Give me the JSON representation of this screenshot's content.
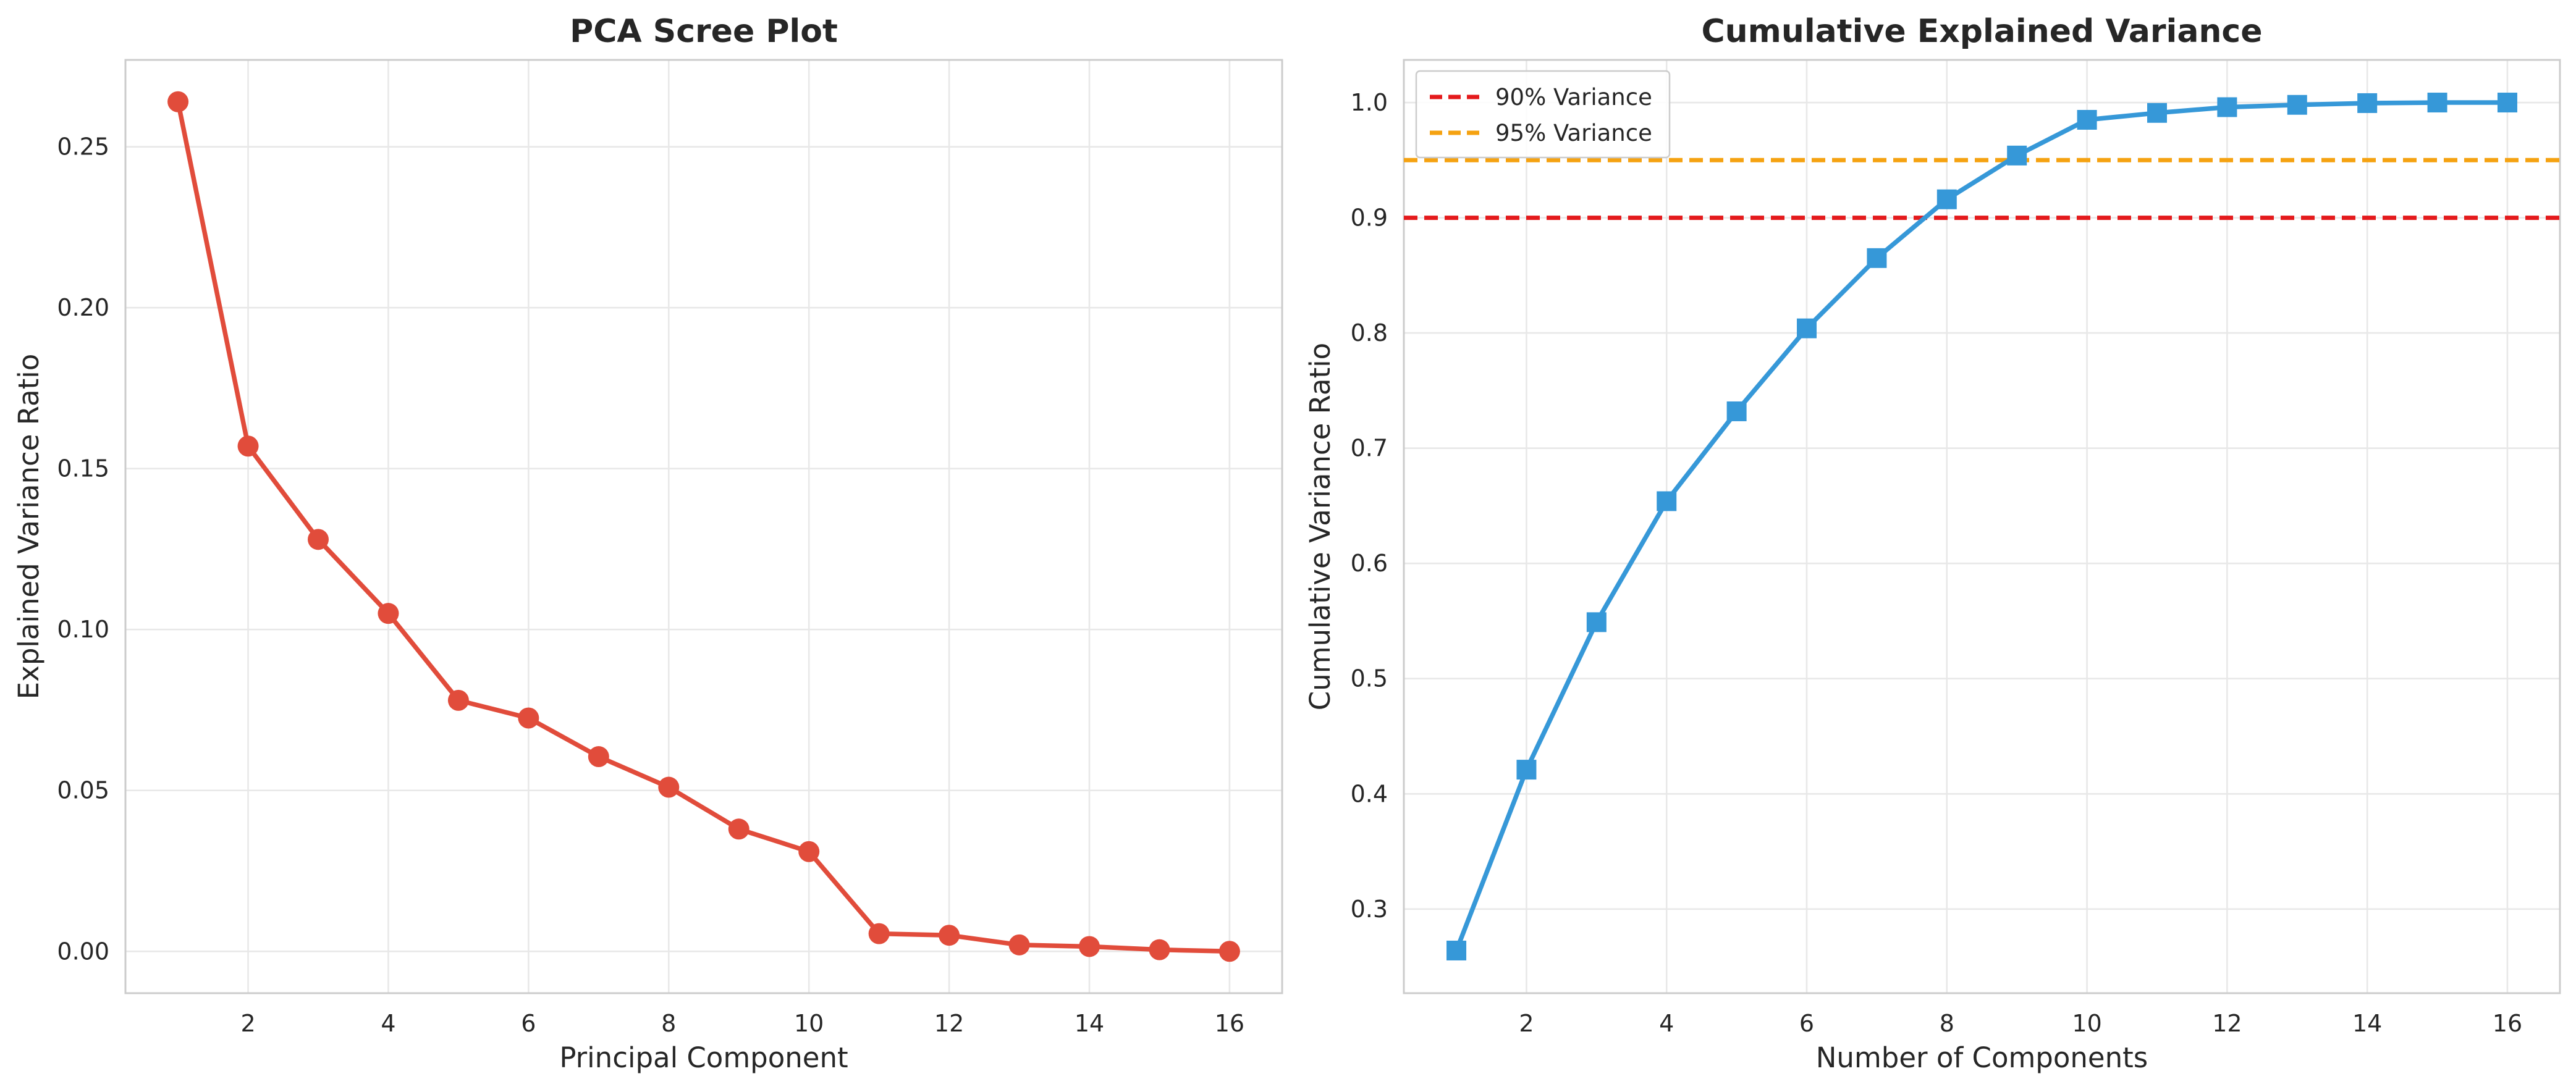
{
  "chart_data": [
    {
      "type": "line",
      "title": "PCA Scree Plot",
      "xlabel": "Principal Component",
      "ylabel": "Explained Variance Ratio",
      "xlim": [
        0.25,
        16.75
      ],
      "ylim": [
        -0.013,
        0.277
      ],
      "xticks": [
        2,
        4,
        6,
        8,
        10,
        12,
        14,
        16
      ],
      "yticks": [
        0.0,
        0.05,
        0.1,
        0.15,
        0.2,
        0.25
      ],
      "ytick_labels": [
        "0.00",
        "0.05",
        "0.10",
        "0.15",
        "0.20",
        "0.25"
      ],
      "grid": true,
      "series": [
        {
          "marker": "circle",
          "color": "#e14c3b",
          "x": [
            1,
            2,
            3,
            4,
            5,
            6,
            7,
            8,
            9,
            10,
            11,
            12,
            13,
            14,
            15,
            16
          ],
          "y": [
            0.264,
            0.157,
            0.128,
            0.105,
            0.078,
            0.0725,
            0.0605,
            0.051,
            0.038,
            0.031,
            0.0055,
            0.005,
            0.002,
            0.0015,
            0.0005,
            0.0
          ]
        }
      ]
    },
    {
      "type": "line",
      "title": "Cumulative Explained Variance",
      "xlabel": "Number of Components",
      "ylabel": "Cumulative Variance Ratio",
      "xlim": [
        0.25,
        16.75
      ],
      "ylim": [
        0.227,
        1.037
      ],
      "xticks": [
        2,
        4,
        6,
        8,
        10,
        12,
        14,
        16
      ],
      "yticks": [
        0.3,
        0.4,
        0.5,
        0.6,
        0.7,
        0.8,
        0.9,
        1.0
      ],
      "ytick_labels": [
        "0.3",
        "0.4",
        "0.5",
        "0.6",
        "0.7",
        "0.8",
        "0.9",
        "1.0"
      ],
      "grid": true,
      "legend_position": "top-left",
      "series": [
        {
          "marker": "square",
          "color": "#3698d8",
          "x": [
            1,
            2,
            3,
            4,
            5,
            6,
            7,
            8,
            9,
            10,
            11,
            12,
            13,
            14,
            15,
            16
          ],
          "y": [
            0.264,
            0.421,
            0.549,
            0.654,
            0.732,
            0.804,
            0.865,
            0.916,
            0.954,
            0.985,
            0.991,
            0.996,
            0.998,
            0.9995,
            1.0,
            1.0
          ]
        }
      ],
      "reference_lines": [
        {
          "label": "90% Variance",
          "y": 0.9,
          "color": "#e41a1c",
          "style": "dashed"
        },
        {
          "label": "95% Variance",
          "y": 0.95,
          "color": "#f5a211",
          "style": "dashed"
        }
      ]
    }
  ]
}
